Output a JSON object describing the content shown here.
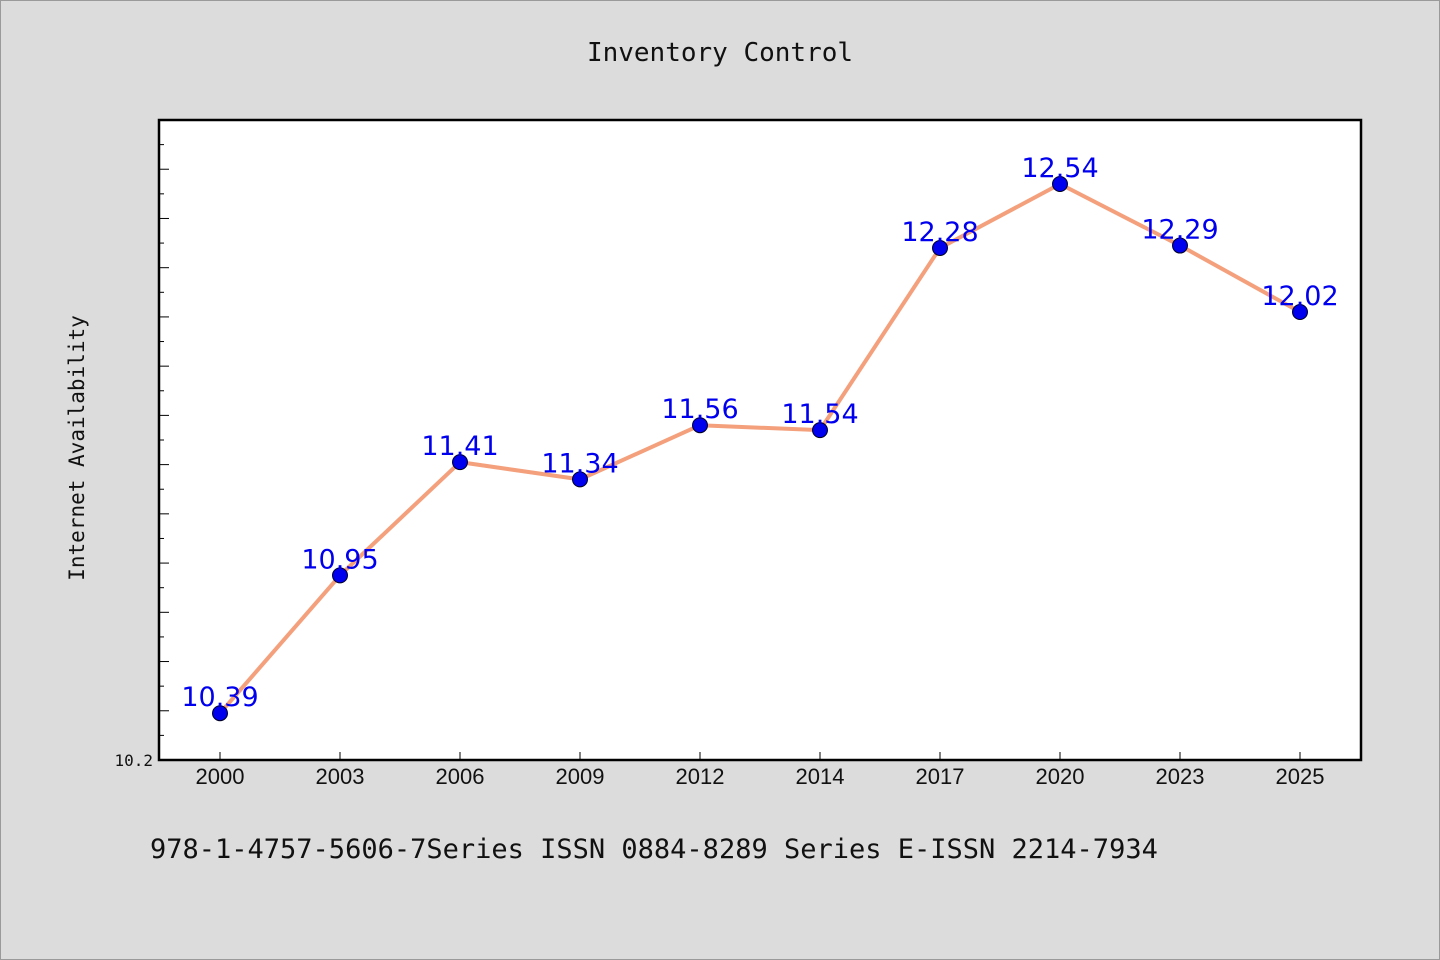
{
  "chart_data": {
    "type": "line",
    "title": "Inventory Control",
    "xlabel": "",
    "ylabel": "Internet Availability",
    "categories": [
      "2000",
      "2003",
      "2006",
      "2009",
      "2012",
      "2014",
      "2017",
      "2020",
      "2023",
      "2025"
    ],
    "series": [
      {
        "values": [
          10.39,
          10.95,
          11.41,
          11.34,
          11.56,
          11.54,
          12.28,
          12.54,
          12.29,
          12.02
        ],
        "data_labels": [
          "10.39",
          "10.95",
          "11.41",
          "11.34",
          "11.56",
          "11.54",
          "12.28",
          "12.54",
          "12.29",
          "12.02"
        ],
        "line_color": "#f4a07c",
        "marker_color": "#0000ee"
      }
    ],
    "ylim": [
      10.2,
      12.8
    ],
    "y_tick_labels": [
      "10.2"
    ],
    "label_color": "#0000ee",
    "grid": false
  },
  "footer": {
    "caption": "978-1-4757-5606-7Series ISSN 0884-8289 Series E-ISSN 2214-7934"
  }
}
